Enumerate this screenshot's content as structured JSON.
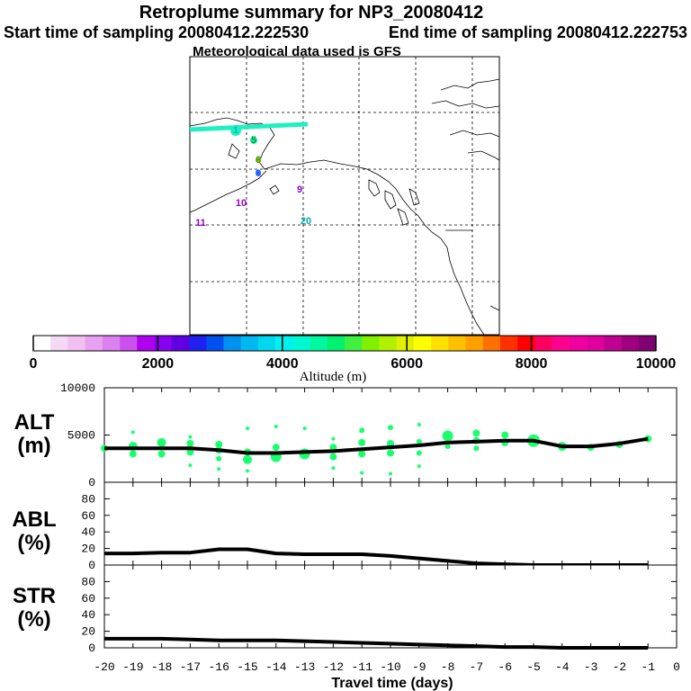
{
  "header": {
    "title": "Retroplume summary for NP3_20080412",
    "start": "Start time of sampling 20080412.222530",
    "end": "End time of sampling 20080412.222753",
    "met": "Meteorological data used is GFS"
  },
  "colors": {
    "plume": "#1aff6e",
    "line": "#000000"
  },
  "map": {
    "labels": [
      {
        "text": "1",
        "day": 1,
        "color": "#00c0c0"
      },
      {
        "text": "5",
        "day": 5,
        "color": "#00a050"
      },
      {
        "text": "6",
        "day": 6,
        "color": "#609000"
      },
      {
        "text": "8",
        "day": 8,
        "color": "#2060ff"
      },
      {
        "text": "9",
        "day": 9,
        "color": "#9000d0"
      },
      {
        "text": "10",
        "day": 10,
        "color": "#a000c0"
      },
      {
        "text": "11",
        "day": 11,
        "color": "#9000d0"
      },
      {
        "text": "20",
        "day": 20,
        "color": "#00b0b0"
      }
    ]
  },
  "colorbar": {
    "label": "Altitude (m)",
    "ticks": [
      "0",
      "2000",
      "4000",
      "6000",
      "8000",
      "10000"
    ],
    "range": [
      0,
      10000
    ],
    "colors": [
      "#ffffff",
      "#f5d8f5",
      "#f0c0f0",
      "#e8a0f0",
      "#dc80f0",
      "#cc50f0",
      "#b000f0",
      "#8800f0",
      "#6000e0",
      "#2020f0",
      "#0050f0",
      "#0090f0",
      "#00b8f0",
      "#00d8f0",
      "#00f0f0",
      "#00f8d0",
      "#00f8a0",
      "#00f070",
      "#40f040",
      "#80f000",
      "#b0f000",
      "#e0f000",
      "#ffff00",
      "#ffe000",
      "#ffc000",
      "#ffa000",
      "#ff7000",
      "#ff3000",
      "#ff0000",
      "#ff0060",
      "#ff0090",
      "#f000a0",
      "#e000a0",
      "#c00090",
      "#a00080",
      "#800070"
    ]
  },
  "chart_data": [
    {
      "type": "scatter",
      "name": "ALT",
      "ylabel_line1": "ALT",
      "ylabel_line2": "(m)",
      "ylim": [
        0,
        10000
      ],
      "yticks": [
        "0",
        "5000",
        "10000"
      ],
      "x": [
        -20,
        -19,
        -18,
        -17,
        -16,
        -15,
        -14,
        -13,
        -12,
        -11,
        -10,
        -9,
        -8,
        -7,
        -6,
        -5,
        -4,
        -3,
        -2,
        -1
      ],
      "median": [
        3600,
        3600,
        3600,
        3600,
        3400,
        3100,
        3100,
        3200,
        3300,
        3500,
        3700,
        3900,
        4200,
        4300,
        4400,
        4400,
        3800,
        3800,
        4100,
        4600
      ],
      "points": [
        {
          "x": -20,
          "y": 3600,
          "r": 4
        },
        {
          "x": -19,
          "y": 3800,
          "r": 5
        },
        {
          "x": -19,
          "y": 3000,
          "r": 4
        },
        {
          "x": -19,
          "y": 5300,
          "r": 2
        },
        {
          "x": -18,
          "y": 4200,
          "r": 5
        },
        {
          "x": -18,
          "y": 3000,
          "r": 4
        },
        {
          "x": -17,
          "y": 4100,
          "r": 4
        },
        {
          "x": -17,
          "y": 3200,
          "r": 4
        },
        {
          "x": -17,
          "y": 4800,
          "r": 2
        },
        {
          "x": -17,
          "y": 1800,
          "r": 2
        },
        {
          "x": -16,
          "y": 4000,
          "r": 4
        },
        {
          "x": -16,
          "y": 3400,
          "r": 4
        },
        {
          "x": -16,
          "y": 2500,
          "r": 3
        },
        {
          "x": -16,
          "y": 1400,
          "r": 2
        },
        {
          "x": -15,
          "y": 3200,
          "r": 4
        },
        {
          "x": -15,
          "y": 2400,
          "r": 5
        },
        {
          "x": -15,
          "y": 5700,
          "r": 2
        },
        {
          "x": -15,
          "y": 1200,
          "r": 2
        },
        {
          "x": -14,
          "y": 2700,
          "r": 6
        },
        {
          "x": -14,
          "y": 3700,
          "r": 4
        },
        {
          "x": -14,
          "y": 5900,
          "r": 2
        },
        {
          "x": -13,
          "y": 3000,
          "r": 6
        },
        {
          "x": -13,
          "y": 5700,
          "r": 2
        },
        {
          "x": -12,
          "y": 3700,
          "r": 4
        },
        {
          "x": -12,
          "y": 2700,
          "r": 4
        },
        {
          "x": -12,
          "y": 4600,
          "r": 2
        },
        {
          "x": -12,
          "y": 1500,
          "r": 2
        },
        {
          "x": -11,
          "y": 4200,
          "r": 4
        },
        {
          "x": -11,
          "y": 3000,
          "r": 4
        },
        {
          "x": -11,
          "y": 5500,
          "r": 3
        },
        {
          "x": -11,
          "y": 1000,
          "r": 2
        },
        {
          "x": -10,
          "y": 4100,
          "r": 4
        },
        {
          "x": -10,
          "y": 3100,
          "r": 4
        },
        {
          "x": -10,
          "y": 5800,
          "r": 3
        },
        {
          "x": -10,
          "y": 900,
          "r": 2
        },
        {
          "x": -9,
          "y": 4300,
          "r": 3
        },
        {
          "x": -9,
          "y": 3100,
          "r": 3
        },
        {
          "x": -9,
          "y": 6100,
          "r": 2
        },
        {
          "x": -9,
          "y": 1700,
          "r": 2
        },
        {
          "x": -8,
          "y": 4900,
          "r": 6
        },
        {
          "x": -8,
          "y": 3800,
          "r": 3
        },
        {
          "x": -7,
          "y": 5200,
          "r": 4
        },
        {
          "x": -7,
          "y": 4400,
          "r": 4
        },
        {
          "x": -7,
          "y": 3600,
          "r": 3
        },
        {
          "x": -6,
          "y": 5000,
          "r": 4
        },
        {
          "x": -6,
          "y": 4200,
          "r": 4
        },
        {
          "x": -5,
          "y": 4400,
          "r": 7
        },
        {
          "x": -4,
          "y": 3800,
          "r": 5
        },
        {
          "x": -3,
          "y": 3700,
          "r": 4
        },
        {
          "x": -2,
          "y": 4000,
          "r": 4
        },
        {
          "x": -1,
          "y": 4600,
          "r": 4
        }
      ]
    },
    {
      "type": "line",
      "name": "ABL",
      "ylabel_line1": "ABL",
      "ylabel_line2": "(%)",
      "ylim": [
        0,
        100
      ],
      "yticks": [
        "0",
        "20",
        "40",
        "60",
        "80"
      ],
      "x": [
        -20,
        -19,
        -18,
        -17,
        -16,
        -15,
        -14,
        -13,
        -12,
        -11,
        -10,
        -9,
        -8,
        -7,
        -6,
        -5,
        -4,
        -3,
        -2,
        -1
      ],
      "values": [
        14,
        14,
        15,
        15,
        19,
        19,
        14,
        13,
        13,
        13,
        11,
        8,
        5,
        2,
        1,
        0,
        0,
        0,
        0,
        0
      ]
    },
    {
      "type": "line",
      "name": "STR",
      "ylabel_line1": "STR",
      "ylabel_line2": "(%)",
      "ylim": [
        0,
        100
      ],
      "yticks": [
        "0",
        "20",
        "40",
        "60",
        "80"
      ],
      "x": [
        -20,
        -19,
        -18,
        -17,
        -16,
        -15,
        -14,
        -13,
        -12,
        -11,
        -10,
        -9,
        -8,
        -7,
        -6,
        -5,
        -4,
        -3,
        -2,
        -1
      ],
      "values": [
        11,
        11,
        11,
        10,
        9,
        9,
        9,
        8,
        7,
        6,
        5,
        4,
        3,
        2,
        1,
        1,
        0,
        0,
        0,
        0
      ]
    },
    {
      "type": "axis",
      "name": "x-axis",
      "xlabel": "Travel time (days)",
      "xlim": [
        -20,
        0
      ],
      "xticks": [
        "-20",
        "-19",
        "-18",
        "-17",
        "-16",
        "-15",
        "-14",
        "-13",
        "-12",
        "-11",
        "-10",
        "-9",
        "-8",
        "-7",
        "-6",
        "-5",
        "-4",
        "-3",
        "-2",
        "-1",
        "0"
      ]
    }
  ]
}
